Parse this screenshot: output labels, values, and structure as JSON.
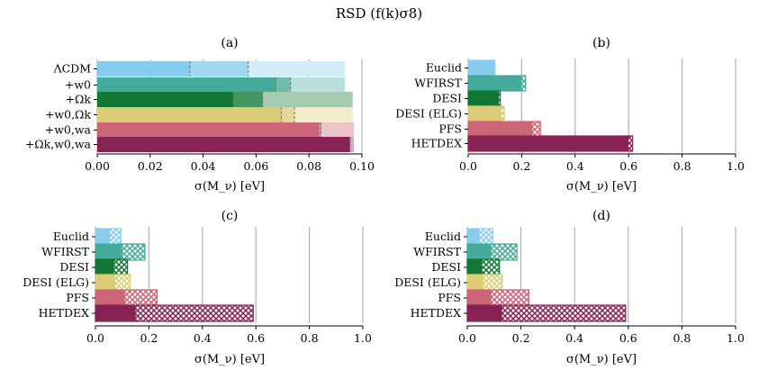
{
  "figure_title": "RSD (f(k)σ8)",
  "axis_unit": "eV",
  "axis_quantity": "σ(M_ν)",
  "colors": {
    "lightblue": "#88ccee",
    "teal": "#44aa99",
    "green": "#117733",
    "sand": "#ddcc77",
    "rose": "#cc6677",
    "wine": "#882255"
  },
  "chart_data": [
    {
      "id": "a",
      "type": "bar",
      "title": "(a)",
      "orientation": "horizontal",
      "xlabel": "σ(M_ν) [eV]",
      "xlim": [
        0,
        0.1
      ],
      "xticks": [
        0.0,
        0.02,
        0.04,
        0.06,
        0.08,
        0.1
      ],
      "xtick_labels": [
        "0.00",
        "0.02",
        "0.04",
        "0.06",
        "0.08",
        "0.10"
      ],
      "grid": "vertical",
      "categories": [
        "ΛCDM",
        "+w0",
        "+Ωk",
        "+w0,Ωk",
        "+w0,wa",
        "+Ωk,w0,wa"
      ],
      "bar_colors": [
        "lightblue",
        "teal",
        "green",
        "sand",
        "rose",
        "wine"
      ],
      "series": [
        {
          "name": "full",
          "values": [
            0.035,
            0.0675,
            0.0515,
            0.0695,
            0.0835,
            0.0955
          ]
        },
        {
          "name": "mid",
          "values": [
            0.057,
            0.073,
            0.0625,
            0.0745,
            0.0845,
            0.0955
          ]
        },
        {
          "name": "outer",
          "values": [
            0.0935,
            0.0935,
            0.0965,
            0.0965,
            0.097,
            0.097
          ]
        }
      ]
    },
    {
      "id": "b",
      "type": "bar",
      "title": "(b)",
      "orientation": "horizontal",
      "xlabel": "σ(M_ν) [eV]",
      "xlim": [
        0,
        1.0
      ],
      "xticks": [
        0.0,
        0.2,
        0.4,
        0.6,
        0.8,
        1.0
      ],
      "xtick_labels": [
        "0.0",
        "0.2",
        "0.4",
        "0.6",
        "0.8",
        "1.0"
      ],
      "grid": "vertical",
      "categories": [
        "Euclid",
        "WFIRST",
        "DESI",
        "DESI (ELG)",
        "PFS",
        "HETDEX"
      ],
      "bar_colors": [
        "lightblue",
        "teal",
        "green",
        "sand",
        "rose",
        "wine"
      ],
      "series": [
        {
          "name": "solid",
          "values": [
            0.1,
            0.2,
            0.115,
            0.125,
            0.24,
            0.6
          ]
        },
        {
          "name": "hatched",
          "values": [
            0.1,
            0.215,
            0.12,
            0.135,
            0.27,
            0.615
          ]
        }
      ]
    },
    {
      "id": "c",
      "type": "bar",
      "title": "(c)",
      "orientation": "horizontal",
      "xlabel": "σ(M_ν) [eV]",
      "xlim": [
        0,
        1.0
      ],
      "xticks": [
        0.0,
        0.2,
        0.4,
        0.6,
        0.8,
        1.0
      ],
      "xtick_labels": [
        "0.0",
        "0.2",
        "0.4",
        "0.6",
        "0.8",
        "1.0"
      ],
      "grid": "vertical",
      "categories": [
        "Euclid",
        "WFIRST",
        "DESI",
        "DESI (ELG)",
        "PFS",
        "HETDEX"
      ],
      "bar_colors": [
        "lightblue",
        "teal",
        "green",
        "sand",
        "rose",
        "wine"
      ],
      "series": [
        {
          "name": "solid",
          "values": [
            0.055,
            0.1,
            0.07,
            0.075,
            0.11,
            0.15
          ]
        },
        {
          "name": "hatched",
          "values": [
            0.095,
            0.185,
            0.12,
            0.13,
            0.23,
            0.59
          ]
        }
      ]
    },
    {
      "id": "d",
      "type": "bar",
      "title": "(d)",
      "orientation": "horizontal",
      "xlabel": "σ(M_ν) [eV]",
      "xlim": [
        0,
        1.0
      ],
      "xticks": [
        0.0,
        0.2,
        0.4,
        0.6,
        0.8,
        1.0
      ],
      "xtick_labels": [
        "0.0",
        "0.2",
        "0.4",
        "0.6",
        "0.8",
        "1.0"
      ],
      "grid": "vertical",
      "categories": [
        "Euclid",
        "WFIRST",
        "DESI",
        "DESI (ELG)",
        "PFS",
        "HETDEX"
      ],
      "bar_colors": [
        "lightblue",
        "teal",
        "green",
        "sand",
        "rose",
        "wine"
      ],
      "series": [
        {
          "name": "solid",
          "values": [
            0.045,
            0.09,
            0.055,
            0.06,
            0.09,
            0.13
          ]
        },
        {
          "name": "hatched",
          "values": [
            0.095,
            0.185,
            0.12,
            0.13,
            0.23,
            0.59
          ]
        }
      ]
    }
  ]
}
